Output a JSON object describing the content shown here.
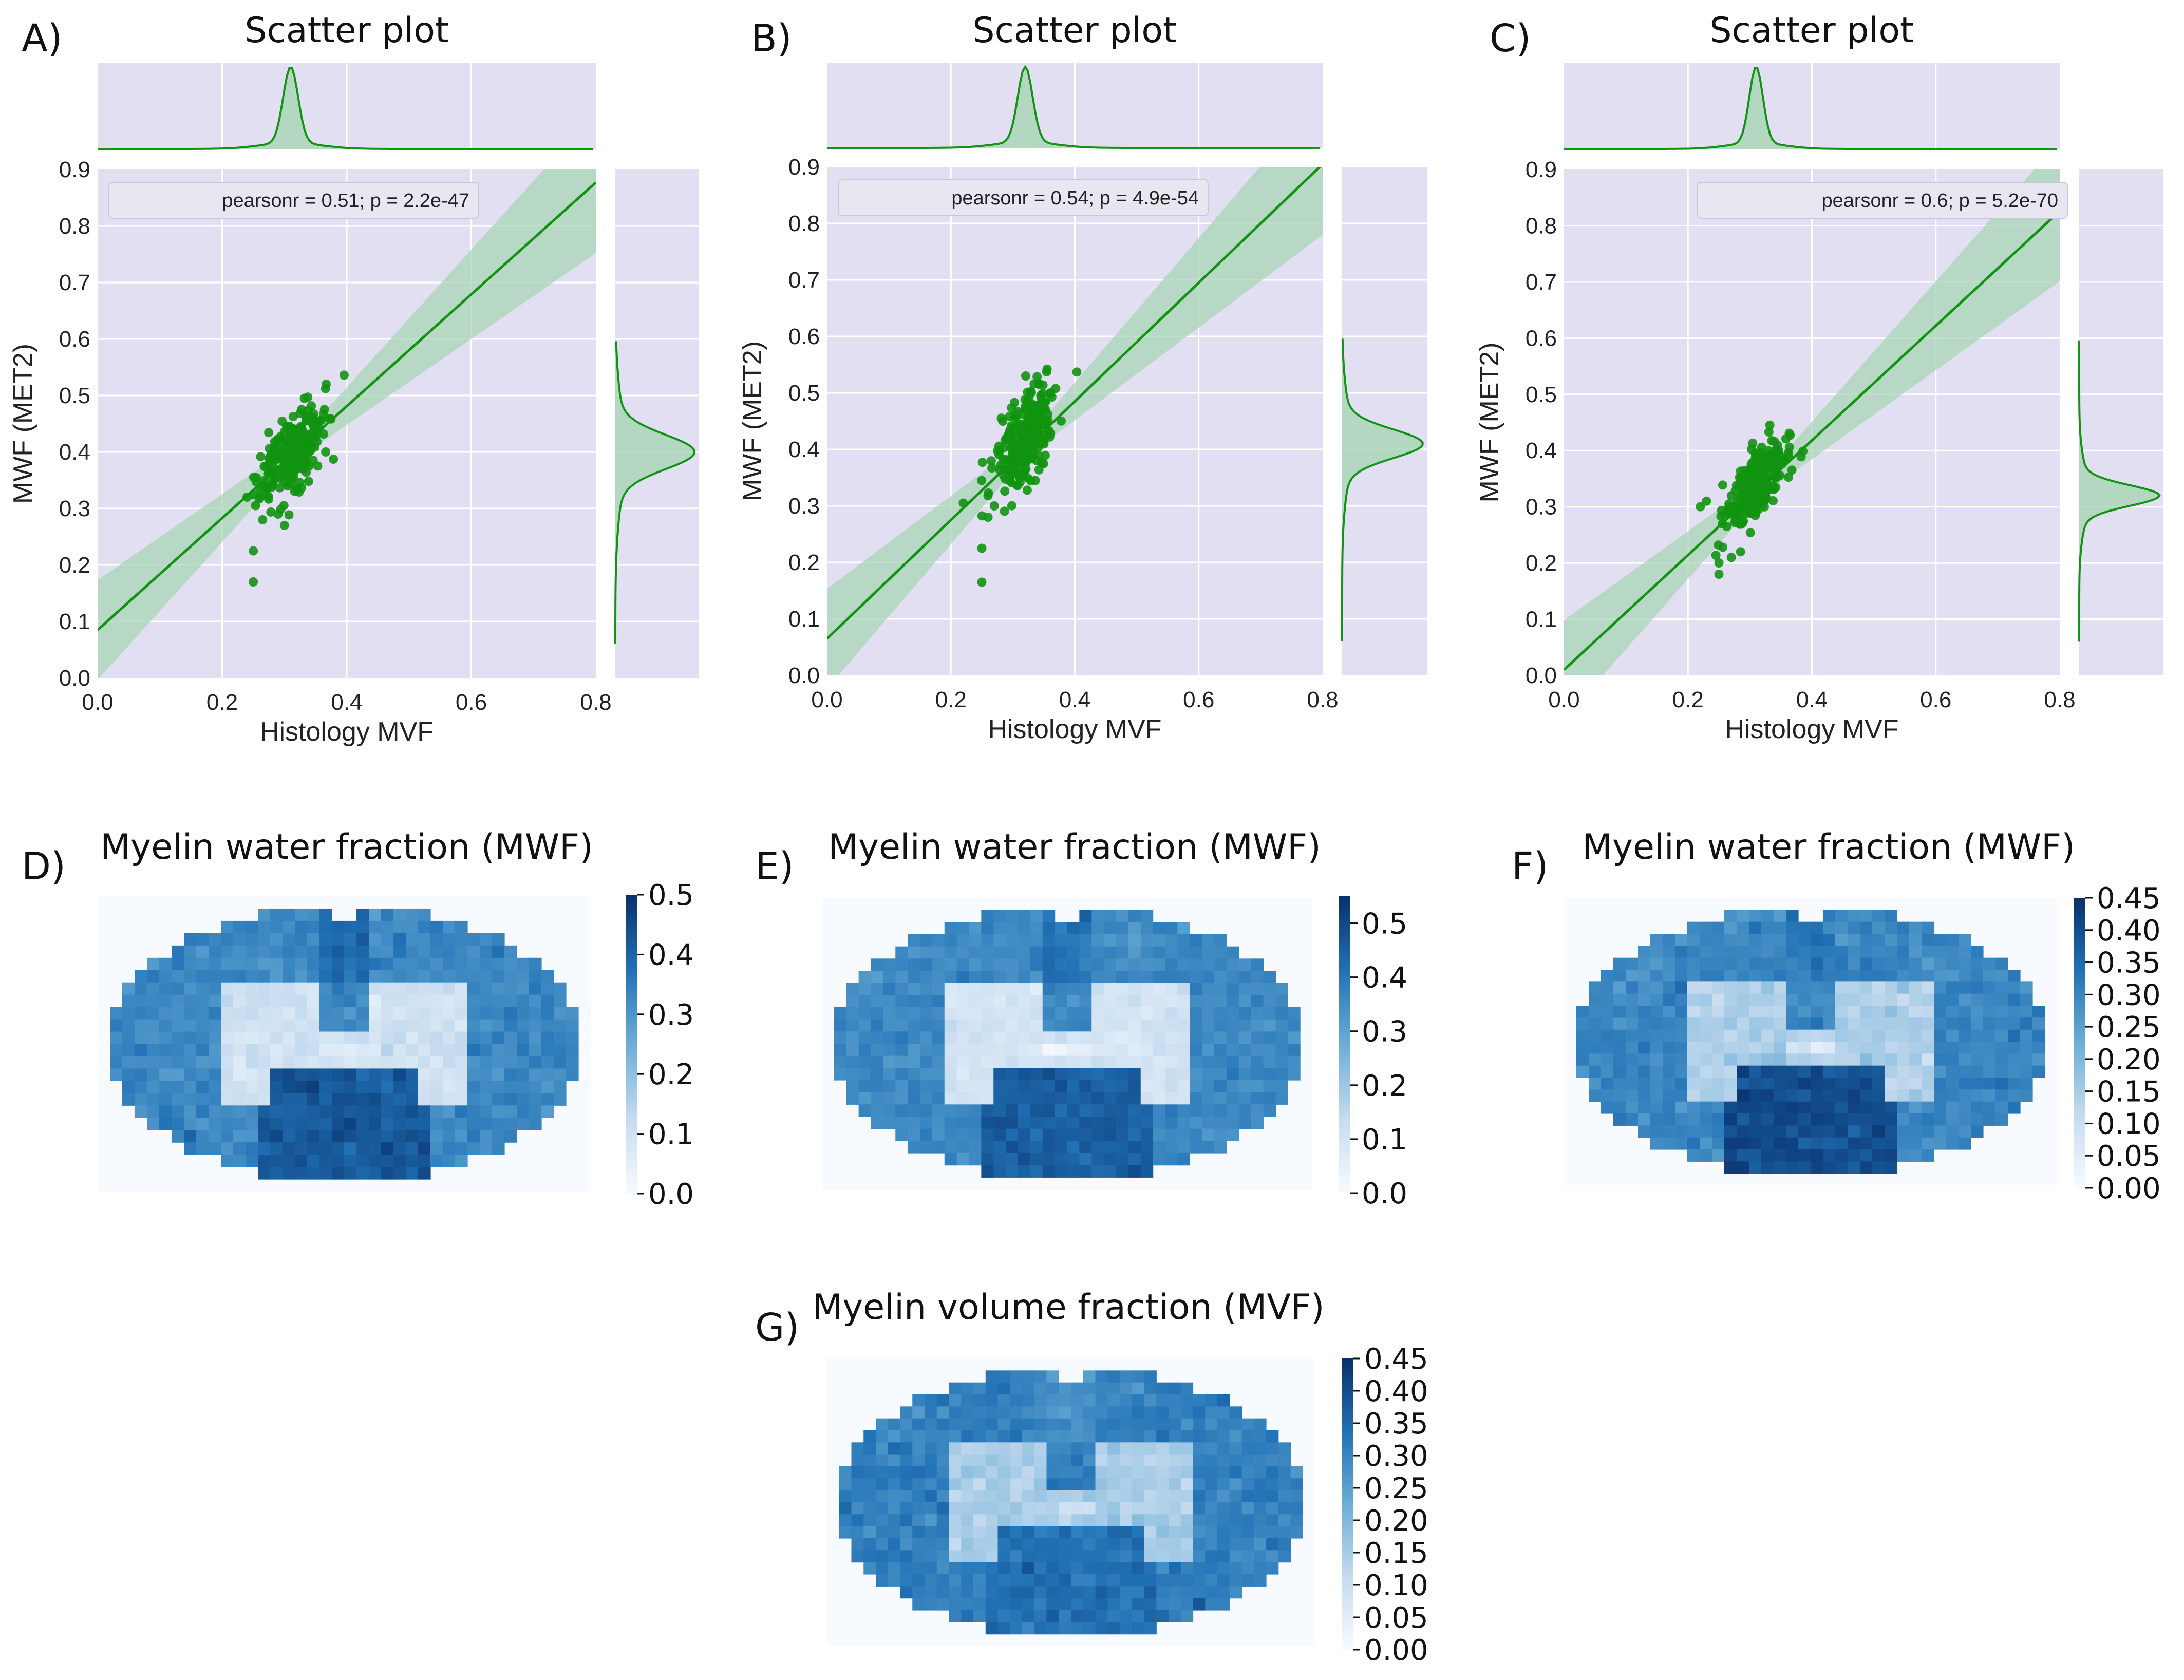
{
  "colors": {
    "panel_bg": "#e3dff2",
    "grid": "#ffffff",
    "green": "#119411",
    "band": "#a8d5b5",
    "legend_bg": "#e8e6f0",
    "legend_edge": "#c9c6d6",
    "blue_dark": "#08306b",
    "blue_light": "#f7fbff"
  },
  "chart_data": [
    {
      "id": "A",
      "panel_label": "A)",
      "type": "scatter",
      "title": "Scatter plot",
      "xlabel": "Histology MVF",
      "ylabel": "MWF (MET2)",
      "xlim": [
        0,
        0.8
      ],
      "ylim": [
        0,
        0.9
      ],
      "xticks": [
        "0.0",
        "0.2",
        "0.4",
        "0.6",
        "0.8"
      ],
      "yticks": [
        "0.0",
        "0.1",
        "0.2",
        "0.3",
        "0.4",
        "0.5",
        "0.6",
        "0.7",
        "0.8",
        "0.9"
      ],
      "legend": "pearsonr = 0.51; p = 2.2e-47",
      "regression": {
        "intercept": 0.085,
        "slope": 0.99
      },
      "cluster": {
        "x_center": 0.31,
        "x_spread": 0.028,
        "y_center": 0.395,
        "y_spread": 0.035
      },
      "outliers": [
        [
          0.25,
          0.17
        ],
        [
          0.25,
          0.225
        ],
        [
          0.265,
          0.28
        ],
        [
          0.29,
          0.29
        ],
        [
          0.3,
          0.27
        ],
        [
          0.24,
          0.32
        ]
      ],
      "x_hist": {
        "peak": 0.31,
        "width": 0.012
      },
      "y_hist": {
        "peak": 0.4,
        "width": 0.03
      }
    },
    {
      "id": "B",
      "panel_label": "B)",
      "type": "scatter",
      "title": "Scatter plot",
      "xlabel": "Histology MVF",
      "ylabel": "MWF (MET2)",
      "xlim": [
        0,
        0.8
      ],
      "ylim": [
        0,
        0.9
      ],
      "xticks": [
        "0.0",
        "0.2",
        "0.4",
        "0.6",
        "0.8"
      ],
      "yticks": [
        "0.0",
        "0.1",
        "0.2",
        "0.3",
        "0.4",
        "0.5",
        "0.6",
        "0.7",
        "0.8",
        "0.9"
      ],
      "legend": "pearsonr = 0.54; p = 4.9e-54",
      "regression": {
        "intercept": 0.065,
        "slope": 1.05
      },
      "cluster": {
        "x_center": 0.32,
        "x_spread": 0.025,
        "y_center": 0.42,
        "y_spread": 0.038
      },
      "outliers": [
        [
          0.25,
          0.165
        ],
        [
          0.25,
          0.225
        ],
        [
          0.26,
          0.28
        ],
        [
          0.27,
          0.3
        ],
        [
          0.22,
          0.305
        ]
      ],
      "x_hist": {
        "peak": 0.32,
        "width": 0.012
      },
      "y_hist": {
        "peak": 0.41,
        "width": 0.025
      }
    },
    {
      "id": "C",
      "panel_label": "C)",
      "type": "scatter",
      "title": "Scatter plot",
      "xlabel": "Histology MVF",
      "ylabel": "MWF (MET2)",
      "xlim": [
        0,
        0.8
      ],
      "ylim": [
        0,
        0.9
      ],
      "xticks": [
        "0.0",
        "0.2",
        "0.4",
        "0.6",
        "0.8"
      ],
      "yticks": [
        "0.0",
        "0.1",
        "0.2",
        "0.3",
        "0.4",
        "0.5",
        "0.6",
        "0.7",
        "0.8",
        "0.9"
      ],
      "legend": "pearsonr = 0.6; p = 5.2e-70",
      "regression": {
        "intercept": 0.01,
        "slope": 1.02
      },
      "cluster": {
        "x_center": 0.31,
        "x_spread": 0.025,
        "y_center": 0.335,
        "y_spread": 0.028
      },
      "outliers": [
        [
          0.25,
          0.18
        ],
        [
          0.25,
          0.2
        ],
        [
          0.27,
          0.21
        ],
        [
          0.285,
          0.22
        ],
        [
          0.22,
          0.3
        ],
        [
          0.23,
          0.31
        ]
      ],
      "x_hist": {
        "peak": 0.31,
        "width": 0.011
      },
      "y_hist": {
        "peak": 0.32,
        "width": 0.018
      }
    }
  ],
  "heatmaps": [
    {
      "id": "D",
      "panel_label": "D)",
      "type": "heatmap",
      "title": "Myelin water fraction (MWF)",
      "colorbar": {
        "min": 0.0,
        "max": 0.5,
        "ticks": [
          "0.0",
          "0.1",
          "0.2",
          "0.3",
          "0.4",
          "0.5"
        ],
        "tick_values": [
          0,
          0.1,
          0.2,
          0.3,
          0.4,
          0.5
        ]
      },
      "values": {
        "gray_matter": 0.33,
        "white_matter_dorsal": 0.45,
        "white_matter_ventral": 0.42,
        "butterfly": 0.1,
        "central": 0.05
      }
    },
    {
      "id": "E",
      "panel_label": "E)",
      "type": "heatmap",
      "title": "Myelin water fraction (MWF)",
      "colorbar": {
        "min": 0.0,
        "max": 0.55,
        "ticks": [
          "0.0",
          "0.1",
          "0.2",
          "0.3",
          "0.4",
          "0.5"
        ],
        "tick_values": [
          0,
          0.1,
          0.2,
          0.3,
          0.4,
          0.5
        ]
      },
      "values": {
        "gray_matter": 0.36,
        "white_matter_dorsal": 0.48,
        "white_matter_ventral": 0.45,
        "butterfly": 0.1,
        "central": 0.05
      }
    },
    {
      "id": "F",
      "panel_label": "F)",
      "type": "heatmap",
      "title": "Myelin water fraction (MWF)",
      "colorbar": {
        "min": 0.0,
        "max": 0.45,
        "ticks": [
          "0.00",
          "0.05",
          "0.10",
          "0.15",
          "0.20",
          "0.25",
          "0.30",
          "0.35",
          "0.40",
          "0.45"
        ],
        "tick_values": [
          0,
          0.05,
          0.1,
          0.15,
          0.2,
          0.25,
          0.3,
          0.35,
          0.4,
          0.45
        ]
      },
      "values": {
        "gray_matter": 0.3,
        "white_matter_dorsal": 0.38,
        "white_matter_ventral": 0.4,
        "butterfly": 0.14,
        "central": 0.07
      }
    },
    {
      "id": "G",
      "panel_label": "G)",
      "type": "heatmap",
      "title": "Myelin volume fraction (MVF)",
      "colorbar": {
        "min": 0.0,
        "max": 0.45,
        "ticks": [
          "0.00",
          "0.05",
          "0.10",
          "0.15",
          "0.20",
          "0.25",
          "0.30",
          "0.35",
          "0.40",
          "0.45"
        ],
        "tick_values": [
          0,
          0.05,
          0.1,
          0.15,
          0.2,
          0.25,
          0.3,
          0.35,
          0.4,
          0.45
        ]
      },
      "values": {
        "gray_matter": 0.31,
        "white_matter_dorsal": 0.33,
        "white_matter_ventral": 0.34,
        "butterfly": 0.15,
        "central": 0.1
      }
    }
  ]
}
